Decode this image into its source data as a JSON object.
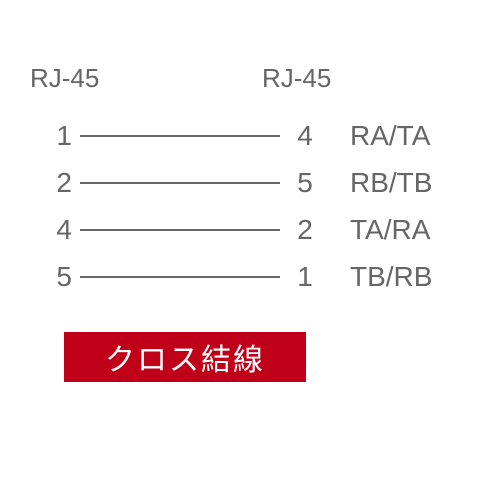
{
  "diagram": {
    "type": "wiring-diagram",
    "header_left": "RJ-45",
    "header_right": "RJ-45",
    "rows": [
      {
        "left_pin": "1",
        "right_pin": "4",
        "signal": "RA/TA"
      },
      {
        "left_pin": "2",
        "right_pin": "5",
        "signal": "RB/TB"
      },
      {
        "left_pin": "4",
        "right_pin": "2",
        "signal": "TA/RA"
      },
      {
        "left_pin": "5",
        "right_pin": "1",
        "signal": "TB/RB"
      }
    ],
    "label": "クロス結線",
    "colors": {
      "text": "#666666",
      "line": "#666666",
      "label_bg": "#c00018",
      "label_text": "#ffffff",
      "background": "#ffffff"
    },
    "font_sizes": {
      "header": 26,
      "pin": 28,
      "signal": 28,
      "label": 30
    },
    "line_width": 2
  }
}
